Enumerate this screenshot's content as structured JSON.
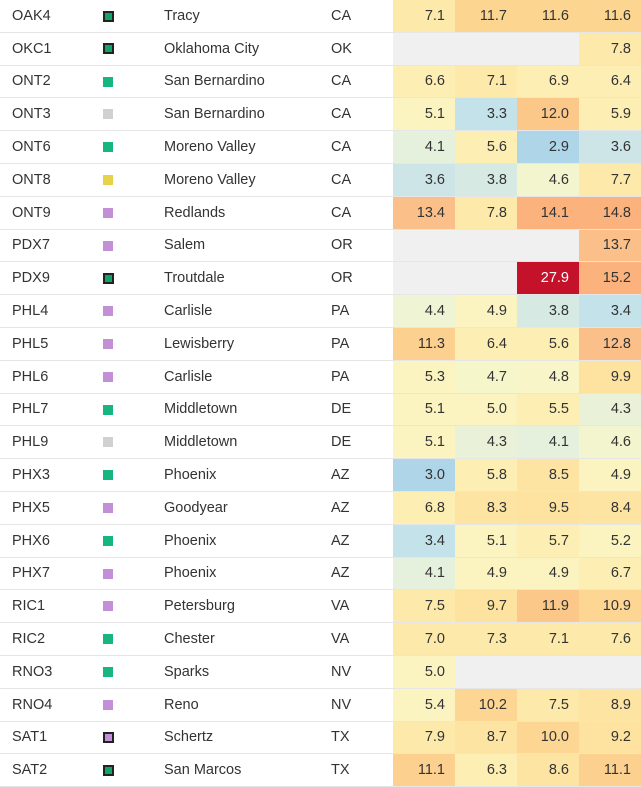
{
  "colors": {
    "dark_green_outlined": "#12a36b",
    "green": "#17b580",
    "gray": "#d0d0d0",
    "yellow": "#e6d34a",
    "purple": "#c38fd6",
    "purple_outlined": "#c38fd6",
    "empty_cell": "#f0f0f0"
  },
  "rows": [
    {
      "code": "OAK4",
      "marker": "dark_green_outlined",
      "city": "Tracy",
      "state": "CA",
      "values": [
        "7.1",
        "11.7",
        "11.6",
        "11.6"
      ],
      "fills": [
        "#fde9a9",
        "#fcd591",
        "#fcd591",
        "#fcd591"
      ]
    },
    {
      "code": "OKC1",
      "marker": "dark_green_outlined",
      "city": "Oklahoma City",
      "state": "OK",
      "values": [
        "",
        "",
        "",
        "7.8"
      ],
      "fills": [
        "#f0f0f0",
        "#f0f0f0",
        "#f0f0f0",
        "#fde9a9"
      ]
    },
    {
      "code": "ONT2",
      "marker": "green",
      "city": "San Bernardino",
      "state": "CA",
      "values": [
        "6.6",
        "7.1",
        "6.9",
        "6.4"
      ],
      "fills": [
        "#fdeeb4",
        "#fde9a9",
        "#fdeeb4",
        "#fdeeb4"
      ]
    },
    {
      "code": "ONT3",
      "marker": "gray",
      "city": "San Bernardino",
      "state": "CA",
      "values": [
        "5.1",
        "3.3",
        "12.0",
        "5.9"
      ],
      "fills": [
        "#fbf3c0",
        "#c4e2ea",
        "#fbc88a",
        "#fdeeb4"
      ]
    },
    {
      "code": "ONT6",
      "marker": "green",
      "city": "Moreno Valley",
      "state": "CA",
      "values": [
        "4.1",
        "5.6",
        "2.9",
        "3.6"
      ],
      "fills": [
        "#e5f1dc",
        "#fdeeb4",
        "#aed6e8",
        "#cde5e6"
      ]
    },
    {
      "code": "ONT8",
      "marker": "yellow",
      "city": "Moreno Valley",
      "state": "CA",
      "values": [
        "3.6",
        "3.8",
        "4.6",
        "7.7"
      ],
      "fills": [
        "#cde5e6",
        "#d6e9e2",
        "#f3f5ce",
        "#fde9a9"
      ]
    },
    {
      "code": "ONT9",
      "marker": "purple",
      "city": "Redlands",
      "state": "CA",
      "values": [
        "13.4",
        "7.8",
        "14.1",
        "14.8"
      ],
      "fills": [
        "#fbc08a",
        "#fde9a9",
        "#fbb27c",
        "#fbb27c"
      ]
    },
    {
      "code": "PDX7",
      "marker": "purple",
      "city": "Salem",
      "state": "OR",
      "values": [
        "",
        "",
        "",
        "13.7"
      ],
      "fills": [
        "#f0f0f0",
        "#f0f0f0",
        "#f0f0f0",
        "#fbc08a"
      ]
    },
    {
      "code": "PDX9",
      "marker": "dark_green_outlined",
      "city": "Troutdale",
      "state": "OR",
      "values": [
        "",
        "",
        "27.9",
        "15.2"
      ],
      "fills": [
        "#f0f0f0",
        "#f0f0f0",
        "#c4122a",
        "#fbb27c"
      ]
    },
    {
      "code": "PHL4",
      "marker": "purple",
      "city": "Carlisle",
      "state": "PA",
      "values": [
        "4.4",
        "4.9",
        "3.8",
        "3.4"
      ],
      "fills": [
        "#eef4d4",
        "#fbf3c0",
        "#d6e9e2",
        "#c4e2ea"
      ]
    },
    {
      "code": "PHL5",
      "marker": "purple",
      "city": "Lewisberry",
      "state": "PA",
      "values": [
        "11.3",
        "6.4",
        "5.6",
        "12.8"
      ],
      "fills": [
        "#fcd08f",
        "#fdeeb4",
        "#fdeeb4",
        "#fbc08a"
      ]
    },
    {
      "code": "PHL6",
      "marker": "purple",
      "city": "Carlisle",
      "state": "PA",
      "values": [
        "5.3",
        "4.7",
        "4.8",
        "9.9"
      ],
      "fills": [
        "#fbf3c0",
        "#f6f6cb",
        "#f8f6c8",
        "#fde2a0"
      ]
    },
    {
      "code": "PHL7",
      "marker": "green",
      "city": "Middletown",
      "state": "DE",
      "values": [
        "5.1",
        "5.0",
        "5.5",
        "4.3"
      ],
      "fills": [
        "#fbf3c0",
        "#fbf3c0",
        "#fdeeb4",
        "#e9f2d8"
      ]
    },
    {
      "code": "PHL9",
      "marker": "gray",
      "city": "Middletown",
      "state": "DE",
      "values": [
        "5.1",
        "4.3",
        "4.1",
        "4.6"
      ],
      "fills": [
        "#fbf3c0",
        "#e9f2d8",
        "#e5f1dc",
        "#f3f5ce"
      ]
    },
    {
      "code": "PHX3",
      "marker": "green",
      "city": "Phoenix",
      "state": "AZ",
      "values": [
        "3.0",
        "5.8",
        "8.5",
        "4.9"
      ],
      "fills": [
        "#aed6e8",
        "#fdeeb4",
        "#fde4a3",
        "#fbf3c0"
      ]
    },
    {
      "code": "PHX5",
      "marker": "purple",
      "city": "Goodyear",
      "state": "AZ",
      "values": [
        "6.8",
        "8.3",
        "9.5",
        "8.4"
      ],
      "fills": [
        "#fdeeb4",
        "#fde4a3",
        "#fde2a0",
        "#fde4a3"
      ]
    },
    {
      "code": "PHX6",
      "marker": "green",
      "city": "Phoenix",
      "state": "AZ",
      "values": [
        "3.4",
        "5.1",
        "5.7",
        "5.2"
      ],
      "fills": [
        "#c4e2ea",
        "#fbf3c0",
        "#fdeeb4",
        "#fbf3c0"
      ]
    },
    {
      "code": "PHX7",
      "marker": "purple",
      "city": "Phoenix",
      "state": "AZ",
      "values": [
        "4.1",
        "4.9",
        "4.9",
        "6.7"
      ],
      "fills": [
        "#e5f1dc",
        "#fbf3c0",
        "#fbf3c0",
        "#fdeeb4"
      ]
    },
    {
      "code": "RIC1",
      "marker": "purple",
      "city": "Petersburg",
      "state": "VA",
      "values": [
        "7.5",
        "9.7",
        "11.9",
        "10.9"
      ],
      "fills": [
        "#fde9a9",
        "#fde2a0",
        "#fbc88a",
        "#fdd694"
      ]
    },
    {
      "code": "RIC2",
      "marker": "green",
      "city": "Chester",
      "state": "VA",
      "values": [
        "7.0",
        "7.3",
        "7.1",
        "7.6"
      ],
      "fills": [
        "#fde9a9",
        "#fde9a9",
        "#fde9a9",
        "#fde9a9"
      ]
    },
    {
      "code": "RNO3",
      "marker": "green",
      "city": "Sparks",
      "state": "NV",
      "values": [
        "5.0",
        "",
        "",
        ""
      ],
      "fills": [
        "#fbf3c0",
        "#f0f0f0",
        "#f0f0f0",
        "#f0f0f0"
      ]
    },
    {
      "code": "RNO4",
      "marker": "purple",
      "city": "Reno",
      "state": "NV",
      "values": [
        "5.4",
        "10.2",
        "7.5",
        "8.9"
      ],
      "fills": [
        "#fbf3c0",
        "#fdd694",
        "#fde9a9",
        "#fde4a3"
      ]
    },
    {
      "code": "SAT1",
      "marker": "purple_outlined",
      "city": "Schertz",
      "state": "TX",
      "values": [
        "7.9",
        "8.7",
        "10.0",
        "9.2"
      ],
      "fills": [
        "#fde9a9",
        "#fde4a3",
        "#fdd694",
        "#fde2a0"
      ]
    },
    {
      "code": "SAT2",
      "marker": "dark_green_outlined",
      "city": "San Marcos",
      "state": "TX",
      "values": [
        "11.1",
        "6.3",
        "8.6",
        "11.1"
      ],
      "fills": [
        "#fcd08f",
        "#fdeeb4",
        "#fde4a3",
        "#fcd08f"
      ]
    }
  ]
}
